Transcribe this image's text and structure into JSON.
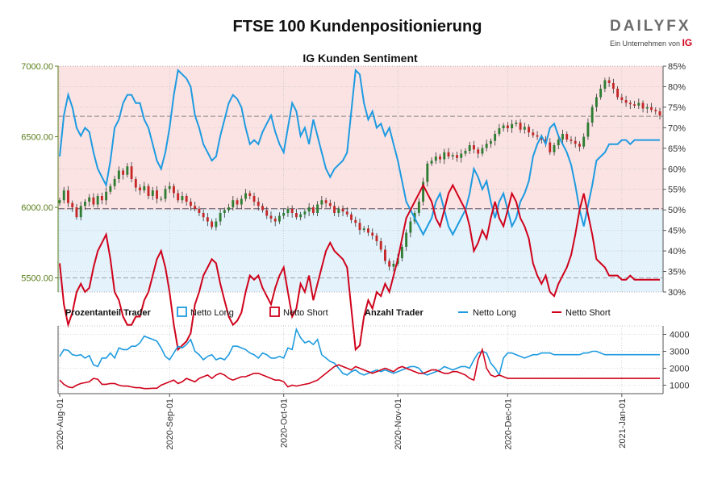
{
  "header": {
    "title": "FTSE 100 Kundenpositionierung",
    "brand_logo": "DAILYFX",
    "brand_tagline": "Ein Unternehmen von",
    "brand_ig": "IG"
  },
  "chart_data": [
    {
      "type": "candlestick+line",
      "title": "IG Kunden Sentiment",
      "price_axis": {
        "ticks": [
          "7000.00",
          "6500.00",
          "6000.00",
          "5500.00"
        ],
        "ylim": [
          5400,
          7000
        ],
        "color": "#5a7d1a"
      },
      "pct_axis": {
        "ticks": [
          "85%",
          "80%",
          "75%",
          "70%",
          "65%",
          "60%",
          "55%",
          "50%",
          "45%",
          "40%",
          "35%",
          "30%"
        ],
        "ylim": [
          30,
          85
        ]
      },
      "reference_lines": {
        "price": 6645,
        "price_low": 5990,
        "price_bottom": 5500
      },
      "price": [
        6050,
        6120,
        6030,
        6000,
        5930,
        6010,
        6040,
        6070,
        6020,
        6080,
        6050,
        6110,
        6150,
        6200,
        6260,
        6230,
        6290,
        6200,
        6140,
        6120,
        6150,
        6080,
        6120,
        6060,
        6060,
        6130,
        6150,
        6100,
        6050,
        6080,
        6040,
        6010,
        5990,
        5960,
        5930,
        5900,
        5860,
        5900,
        5960,
        5980,
        6000,
        6050,
        6020,
        6060,
        6100,
        6080,
        6040,
        6010,
        5980,
        5940,
        5920,
        5900,
        5940,
        5960,
        5990,
        5960,
        5930,
        5950,
        5970,
        6000,
        5960,
        6020,
        6050,
        6030,
        6010,
        5960,
        5990,
        5970,
        5950,
        5910,
        5890,
        5840,
        5850,
        5820,
        5800,
        5760,
        5700,
        5620,
        5580,
        5600,
        5640,
        5720,
        5820,
        5900,
        5960,
        6040,
        6180,
        6310,
        6330,
        6360,
        6340,
        6390,
        6360,
        6370,
        6350,
        6380,
        6400,
        6440,
        6410,
        6380,
        6420,
        6450,
        6470,
        6520,
        6560,
        6580,
        6560,
        6590,
        6600,
        6550,
        6570,
        6530,
        6510,
        6500,
        6480,
        6460,
        6390,
        6440,
        6480,
        6520,
        6480,
        6470,
        6450,
        6430,
        6500,
        6600,
        6710,
        6780,
        6840,
        6900,
        6880,
        6840,
        6780,
        6760,
        6740,
        6730,
        6720,
        6740,
        6700,
        6710,
        6690,
        6680,
        6650
      ],
      "series": [
        {
          "name": "Netto Long",
          "color": "#1e9be0",
          "values": [
            63,
            73,
            78,
            75,
            70,
            68,
            70,
            69,
            64,
            60,
            58,
            56,
            62,
            70,
            72,
            76,
            78,
            78,
            76,
            76,
            72,
            70,
            66,
            62,
            60,
            64,
            70,
            78,
            84,
            83,
            82,
            80,
            73,
            70,
            66,
            64,
            62,
            63,
            68,
            72,
            76,
            78,
            77,
            75,
            70,
            66,
            67,
            66,
            69,
            71,
            73,
            69,
            66,
            64,
            70,
            76,
            74,
            68,
            70,
            66,
            72,
            68,
            64,
            60,
            58,
            60,
            61,
            62,
            64,
            74,
            84,
            83,
            76,
            72,
            74,
            70,
            71,
            68,
            70,
            66,
            62,
            57,
            52,
            50,
            48,
            46,
            44,
            46,
            48,
            52,
            54,
            50,
            46,
            44,
            46,
            48,
            50,
            54,
            60,
            58,
            55,
            57,
            52,
            48,
            52,
            54,
            50,
            46,
            48,
            52,
            54,
            57,
            63,
            66,
            68,
            66,
            70,
            71,
            68,
            66,
            64,
            61,
            56,
            50,
            46,
            51,
            56,
            62,
            63,
            64,
            66,
            66,
            66,
            67,
            67,
            66,
            67,
            67,
            67,
            67,
            67,
            67,
            67
          ]
        },
        {
          "name": "Netto Short",
          "color": "#d0021b",
          "values": [
            37,
            27,
            22,
            25,
            30,
            32,
            30,
            31,
            36,
            40,
            42,
            44,
            38,
            30,
            28,
            24,
            22,
            22,
            24,
            24,
            28,
            30,
            34,
            38,
            40,
            36,
            30,
            22,
            16,
            17,
            18,
            20,
            27,
            30,
            34,
            36,
            38,
            37,
            32,
            28,
            24,
            22,
            23,
            25,
            30,
            34,
            33,
            34,
            31,
            29,
            27,
            31,
            34,
            36,
            30,
            24,
            26,
            32,
            30,
            34,
            28,
            32,
            36,
            40,
            42,
            40,
            39,
            38,
            36,
            26,
            16,
            17,
            24,
            28,
            26,
            30,
            29,
            32,
            30,
            34,
            38,
            43,
            48,
            50,
            52,
            54,
            56,
            54,
            52,
            48,
            46,
            50,
            54,
            56,
            54,
            52,
            50,
            46,
            40,
            42,
            45,
            43,
            48,
            52,
            48,
            46,
            50,
            54,
            52,
            48,
            46,
            43,
            37,
            34,
            32,
            34,
            30,
            29,
            32,
            34,
            36,
            39,
            44,
            50,
            54,
            49,
            44,
            38,
            37,
            36,
            34,
            34,
            34,
            33,
            33,
            34,
            33,
            33,
            33,
            33,
            33,
            33,
            33
          ]
        }
      ]
    },
    {
      "type": "line",
      "title": "Anzahl Trader",
      "y_ticks": [
        "4000",
        "3000",
        "2000",
        "1000"
      ],
      "ylim": [
        500,
        4500
      ],
      "series": [
        {
          "name": "Netto Long",
          "color": "#1e9be0",
          "values": [
            2700,
            3100,
            3050,
            2800,
            2750,
            2800,
            2600,
            2750,
            2200,
            2100,
            2600,
            2600,
            2900,
            2600,
            3200,
            3100,
            3100,
            3300,
            3300,
            3500,
            3900,
            3800,
            3700,
            3600,
            3200,
            2700,
            2500,
            2900,
            3300,
            3200,
            3400,
            3700,
            3000,
            2800,
            2500,
            2700,
            2800,
            2500,
            2600,
            2500,
            2800,
            3300,
            3300,
            3200,
            3100,
            2900,
            2800,
            2600,
            2900,
            2800,
            2600,
            2600,
            2700,
            2600,
            3200,
            3100,
            4300,
            3800,
            3500,
            3600,
            3400,
            3700,
            2800,
            2600,
            2400,
            2300,
            2000,
            1700,
            1600,
            1800,
            1900,
            1700,
            1600,
            1700,
            1800,
            1900,
            1800,
            1900,
            1800,
            1700,
            1800,
            1900,
            2000,
            2100,
            2100,
            2000,
            1700,
            1600,
            1700,
            1800,
            1900,
            2100,
            2000,
            1900,
            2000,
            2100,
            2100,
            2000,
            2500,
            2900,
            3000,
            2900,
            2300,
            2000,
            1600,
            2600,
            2900,
            2900,
            2800,
            2700,
            2600,
            2700,
            2800,
            2800,
            2900,
            2900,
            2900,
            2800,
            2800,
            2800,
            2800,
            2800,
            2800,
            2800,
            2900,
            2900,
            3000,
            3000,
            2900,
            2800,
            2800,
            2800,
            2800,
            2800,
            2800,
            2800,
            2800,
            2800,
            2800,
            2800,
            2800,
            2800,
            2800
          ]
        },
        {
          "name": "Netto Short",
          "color": "#d0021b",
          "values": [
            1300,
            1050,
            900,
            850,
            1000,
            1100,
            1150,
            1200,
            1400,
            1350,
            1050,
            1050,
            1100,
            1100,
            1000,
            950,
            950,
            900,
            850,
            850,
            800,
            800,
            820,
            820,
            1000,
            1100,
            1200,
            1300,
            1100,
            1200,
            1400,
            1300,
            1200,
            1400,
            1500,
            1600,
            1400,
            1600,
            1700,
            1600,
            1400,
            1300,
            1400,
            1500,
            1500,
            1600,
            1700,
            1700,
            1600,
            1500,
            1400,
            1300,
            1300,
            1200,
            900,
            1000,
            950,
            1000,
            1050,
            1100,
            1200,
            1300,
            1500,
            1700,
            1900,
            2100,
            2200,
            2100,
            2000,
            1900,
            2100,
            2000,
            1900,
            1800,
            1700,
            1800,
            1900,
            2000,
            1900,
            1800,
            2000,
            2100,
            2000,
            1900,
            1800,
            1700,
            1700,
            1800,
            1900,
            1900,
            1800,
            1700,
            1700,
            1800,
            1800,
            1700,
            1600,
            1400,
            1300,
            2500,
            3100,
            2000,
            1600,
            1500,
            1600,
            1500,
            1400,
            1400,
            1400,
            1400,
            1400,
            1400,
            1400,
            1400,
            1400,
            1400,
            1400,
            1400,
            1400,
            1400,
            1400,
            1400,
            1400,
            1400,
            1400,
            1400,
            1400,
            1400,
            1400,
            1400,
            1400,
            1400,
            1400,
            1400,
            1400,
            1400,
            1400,
            1400,
            1400,
            1400,
            1400,
            1400,
            1400
          ]
        }
      ]
    }
  ],
  "legend": {
    "group1_title": "Prozentanteil Trader",
    "group1_long": "Netto Long",
    "group1_short": "Netto Short",
    "group2_title": "Anzahl Trader",
    "group2_long": "Netto Long",
    "group2_short": "Netto Short"
  },
  "x_axis": {
    "labels": [
      "2020-Aug-01",
      "2020-Sep-01",
      "2020-Oct-01",
      "2020-Nov-01",
      "2020-Dec-01",
      "2021-Jan-01"
    ]
  },
  "colors": {
    "long": "#1e9be0",
    "short": "#d0021b",
    "long_fill": "#e3f2fb",
    "short_fill": "#fbe3e4",
    "candle_up": "#2e7d32",
    "candle_down": "#c62828"
  }
}
